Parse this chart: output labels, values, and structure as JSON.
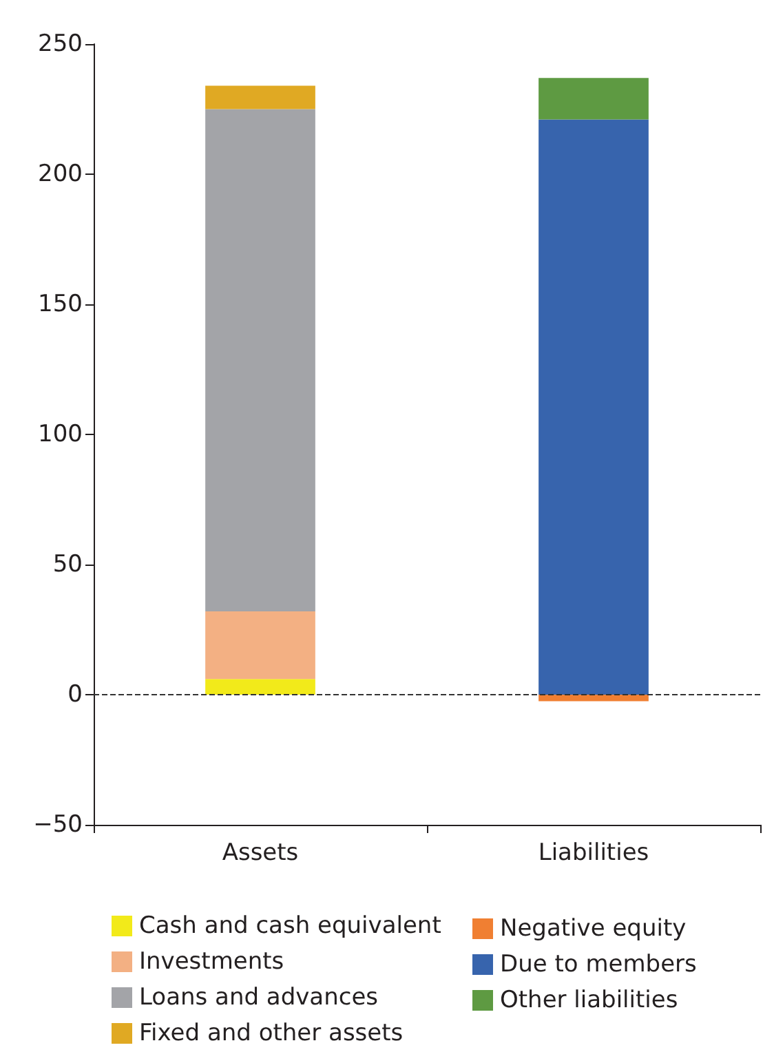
{
  "chart_data": {
    "type": "bar",
    "stacked": true,
    "categories": [
      "Assets",
      "Liabilities"
    ],
    "series": [
      {
        "name": "Cash and cash equivalent",
        "color": "#f2ea1a",
        "values": [
          6,
          null
        ]
      },
      {
        "name": "Investments",
        "color": "#f3b083",
        "values": [
          26,
          null
        ]
      },
      {
        "name": "Loans and advances",
        "color": "#a3a4a8",
        "values": [
          193,
          null
        ]
      },
      {
        "name": "Fixed and other assets",
        "color": "#e0a923",
        "values": [
          9,
          null
        ]
      },
      {
        "name": "Negative equity",
        "color": "#f07f32",
        "values": [
          null,
          -2.5
        ]
      },
      {
        "name": "Due to members",
        "color": "#3764ad",
        "values": [
          null,
          221
        ]
      },
      {
        "name": "Other liabilities",
        "color": "#5e9a42",
        "values": [
          null,
          16
        ]
      }
    ],
    "ylim": [
      -50,
      250
    ],
    "yticks": [
      -50,
      0,
      50,
      100,
      150,
      200,
      250
    ],
    "grid": false,
    "legend": "bottom",
    "ref_lines": [
      {
        "axis": "y",
        "value": 0,
        "line_style": "dashed",
        "color": "#333333"
      }
    ]
  }
}
